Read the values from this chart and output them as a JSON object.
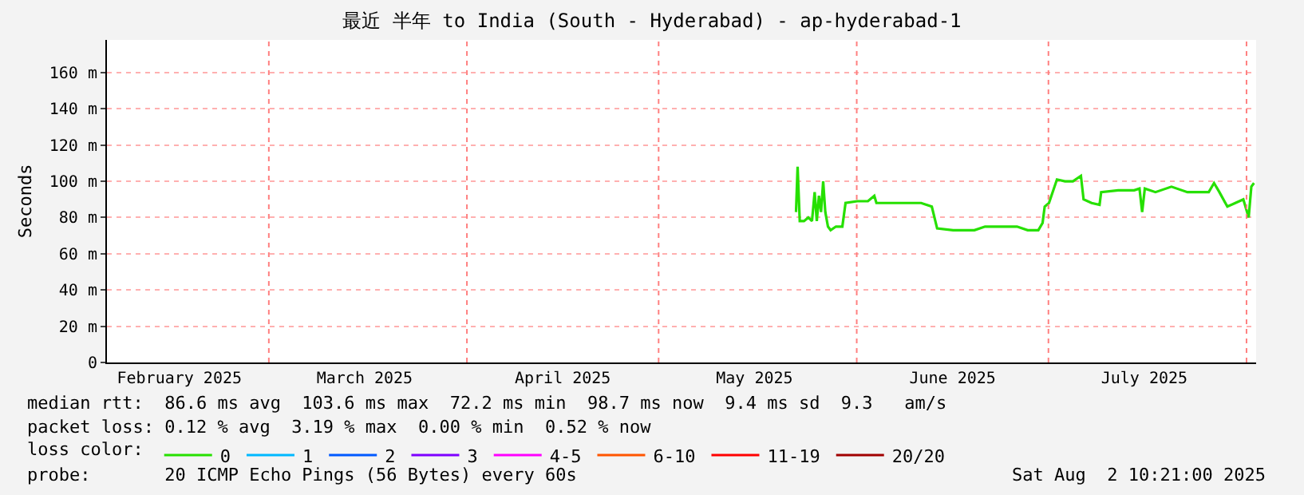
{
  "chart_data": {
    "type": "line",
    "title": "最近 半年 to India (South - Hyderabad) - ap-hyderabad-1",
    "ylabel": "Seconds",
    "xlim": [
      "2025-02-03T16:00",
      "2025-08-02T12:00"
    ],
    "xticks": [
      {
        "value": "2025-02-15",
        "label": "February 2025"
      },
      {
        "value": "2025-03-16",
        "label": "March 2025"
      },
      {
        "value": "2025-04-16",
        "label": "April 2025"
      },
      {
        "value": "2025-05-16",
        "label": "May 2025"
      },
      {
        "value": "2025-06-16",
        "label": "June 2025"
      },
      {
        "value": "2025-07-16",
        "label": "July 2025"
      }
    ],
    "ylim": [
      0,
      178
    ],
    "yticks": [
      0,
      {
        "value": 20,
        "label": "20 m"
      },
      {
        "value": 40,
        "label": "40 m"
      },
      {
        "value": 60,
        "label": "60 m"
      },
      {
        "value": 80,
        "label": "80 m"
      },
      {
        "value": 100,
        "label": "100 m"
      },
      {
        "value": 120,
        "label": "120 m"
      },
      {
        "value": 140,
        "label": "140 m"
      },
      {
        "value": 160,
        "label": "160 m"
      }
    ],
    "grid": "y",
    "legend": "bottom",
    "legend_title": "loss color:",
    "line_style": "solid",
    "ref_lines": [
      {
        "axis": "x",
        "value": "2025-03-01",
        "color": "#ff8080",
        "line_style": "dotted"
      },
      {
        "axis": "x",
        "value": "2025-04-01",
        "color": "#ff8080",
        "line_style": "dotted"
      },
      {
        "axis": "x",
        "value": "2025-05-01",
        "color": "#ff8080",
        "line_style": "dotted"
      },
      {
        "axis": "x",
        "value": "2025-06-01",
        "color": "#ff8080",
        "line_style": "dotted"
      },
      {
        "axis": "x",
        "value": "2025-07-01",
        "color": "#ff8080",
        "line_style": "dotted"
      },
      {
        "axis": "x",
        "value": "2025-08-01",
        "color": "#ff8080",
        "line_style": "dotted"
      }
    ],
    "series": [
      {
        "name": "0",
        "color": "#26e000",
        "x": [
          "2025-05-22T12:00",
          "2025-05-22T18:00",
          "2025-05-23T02:00",
          "2025-05-23T18:00",
          "2025-05-24T10:00",
          "2025-05-25T00:00",
          "2025-05-25T10:00",
          "2025-05-25T18:00",
          "2025-05-26T02:00",
          "2025-05-26T10:00",
          "2025-05-26T18:00",
          "2025-05-27T02:00",
          "2025-05-27T12:00",
          "2025-05-27T22:00",
          "2025-05-28T18:00",
          "2025-05-29T18:00",
          "2025-05-30T06:00",
          "2025-06-01T02:00",
          "2025-06-02T18:00",
          "2025-06-03T18:00",
          "2025-06-04T02:00",
          "2025-06-06T02:00",
          "2025-06-09T10:00",
          "2025-06-11T02:00",
          "2025-06-12T18:00",
          "2025-06-13T14:00",
          "2025-06-16T02:00",
          "2025-06-17T18:00",
          "2025-06-19T10:00",
          "2025-06-21T02:00",
          "2025-06-24T10:00",
          "2025-06-26T02:00",
          "2025-06-27T18:00",
          "2025-06-29T10:00",
          "2025-06-30T02:00",
          "2025-06-30T10:00",
          "2025-07-01T02:00",
          "2025-07-02T08:00",
          "2025-07-03T14:00",
          "2025-07-04T20:00",
          "2025-07-06T02:00",
          "2025-07-06T12:00",
          "2025-07-07T18:00",
          "2025-07-09T00:00",
          "2025-07-09T06:00",
          "2025-07-11T22:00",
          "2025-07-14T10:00",
          "2025-07-15T06:00",
          "2025-07-15T16:00",
          "2025-07-16T02:00",
          "2025-07-17T18:00",
          "2025-07-20T06:00",
          "2025-07-22T18:00",
          "2025-07-26T02:00",
          "2025-07-26T22:00",
          "2025-07-27T18:00",
          "2025-07-29T00:00",
          "2025-07-30T06:00",
          "2025-07-31T12:00",
          "2025-08-01T08:00",
          "2025-08-01T18:00",
          "2025-08-02T04:00"
        ],
        "values": [
          83,
          108,
          78,
          78,
          80,
          78,
          94,
          78,
          92,
          83,
          100,
          83,
          75,
          73,
          75,
          75,
          88,
          89,
          89,
          92,
          88,
          88,
          88,
          88,
          86,
          74,
          73,
          73,
          73,
          75,
          75,
          75,
          73,
          73,
          77,
          86,
          88,
          101,
          100,
          100,
          103,
          90,
          88,
          87,
          94,
          95,
          95,
          96,
          83,
          96,
          94,
          97,
          94,
          94,
          99,
          94,
          86,
          88,
          90,
          80,
          97,
          99
        ]
      },
      {
        "name": "1",
        "color": "#00b8ff"
      },
      {
        "name": "2",
        "color": "#0059ff"
      },
      {
        "name": "3",
        "color": "#7e00ff"
      },
      {
        "name": "4-5",
        "color": "#ff00ff"
      },
      {
        "name": "6-10",
        "color": "#ff5500"
      },
      {
        "name": "11-19",
        "color": "#ff0000"
      },
      {
        "name": "20/20",
        "color": "#a10000"
      }
    ],
    "annotations": [
      "median rtt:  86.6 ms avg  103.6 ms max  72.2 ms min  98.7 ms now  9.4 ms sd  9.3   am/s",
      "packet loss: 0.12 % avg  3.19 % max  0.00 % min  0.52 % now",
      "probe:       20 ICMP Echo Pings (56 Bytes) every 60s",
      "Sat Aug  2 10:21:00 2025"
    ]
  }
}
